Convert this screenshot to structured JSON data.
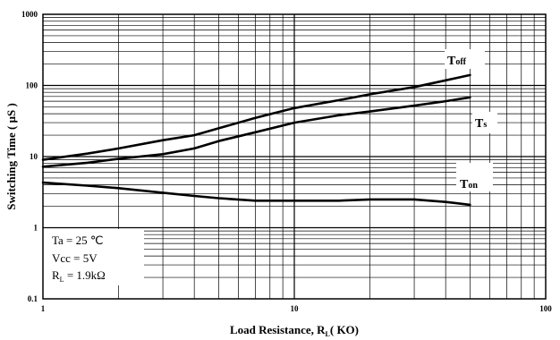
{
  "chart_data": {
    "type": "line",
    "xlabel": {
      "main": "Load Resistance, R",
      "sub": "L",
      "tail": "( KO)"
    },
    "ylabel": "Switching Time ( μS )",
    "x_scale": "log",
    "y_scale": "log",
    "xlim": [
      1,
      100
    ],
    "ylim": [
      0.1,
      1000
    ],
    "x_ticks": [
      {
        "value": 1,
        "label": "1"
      },
      {
        "value": 10,
        "label": "10"
      },
      {
        "value": 100,
        "label": "100"
      }
    ],
    "y_ticks": [
      {
        "value": 1000,
        "label": "1000"
      },
      {
        "value": 100,
        "label": "100"
      },
      {
        "value": 10,
        "label": "10"
      },
      {
        "value": 1,
        "label": "1"
      },
      {
        "value": 0.1,
        "label": "0.1"
      }
    ],
    "grid": true,
    "series": [
      {
        "name": "T",
        "name_sub": "off",
        "points": [
          [
            1,
            9.0
          ],
          [
            1.5,
            11
          ],
          [
            2,
            13
          ],
          [
            3,
            17
          ],
          [
            4,
            20
          ],
          [
            5,
            25
          ],
          [
            7,
            35
          ],
          [
            10,
            48
          ],
          [
            15,
            62
          ],
          [
            20,
            75
          ],
          [
            30,
            95
          ],
          [
            40,
            118
          ],
          [
            50,
            140
          ]
        ]
      },
      {
        "name": "T",
        "name_sub": "s",
        "points": [
          [
            1,
            7.2
          ],
          [
            1.5,
            8.2
          ],
          [
            2,
            9.3
          ],
          [
            3,
            10.8
          ],
          [
            4,
            13
          ],
          [
            5,
            16.5
          ],
          [
            7,
            22
          ],
          [
            10,
            30
          ],
          [
            15,
            38
          ],
          [
            20,
            43
          ],
          [
            30,
            52
          ],
          [
            40,
            60
          ],
          [
            50,
            68
          ]
        ]
      },
      {
        "name": "T",
        "name_sub": "on",
        "points": [
          [
            1,
            4.3
          ],
          [
            1.5,
            3.9
          ],
          [
            2,
            3.6
          ],
          [
            3,
            3.1
          ],
          [
            4,
            2.8
          ],
          [
            5,
            2.6
          ],
          [
            7,
            2.4
          ],
          [
            10,
            2.4
          ],
          [
            15,
            2.4
          ],
          [
            20,
            2.5
          ],
          [
            30,
            2.5
          ],
          [
            40,
            2.3
          ],
          [
            50,
            2.1
          ]
        ]
      }
    ],
    "conditions": [
      {
        "text": "Ta  = 25 ℃"
      },
      {
        "text": "Vcc = 5V"
      },
      {
        "main": "R",
        "sub": "L",
        "tail": " = 1.9kΩ"
      }
    ]
  }
}
